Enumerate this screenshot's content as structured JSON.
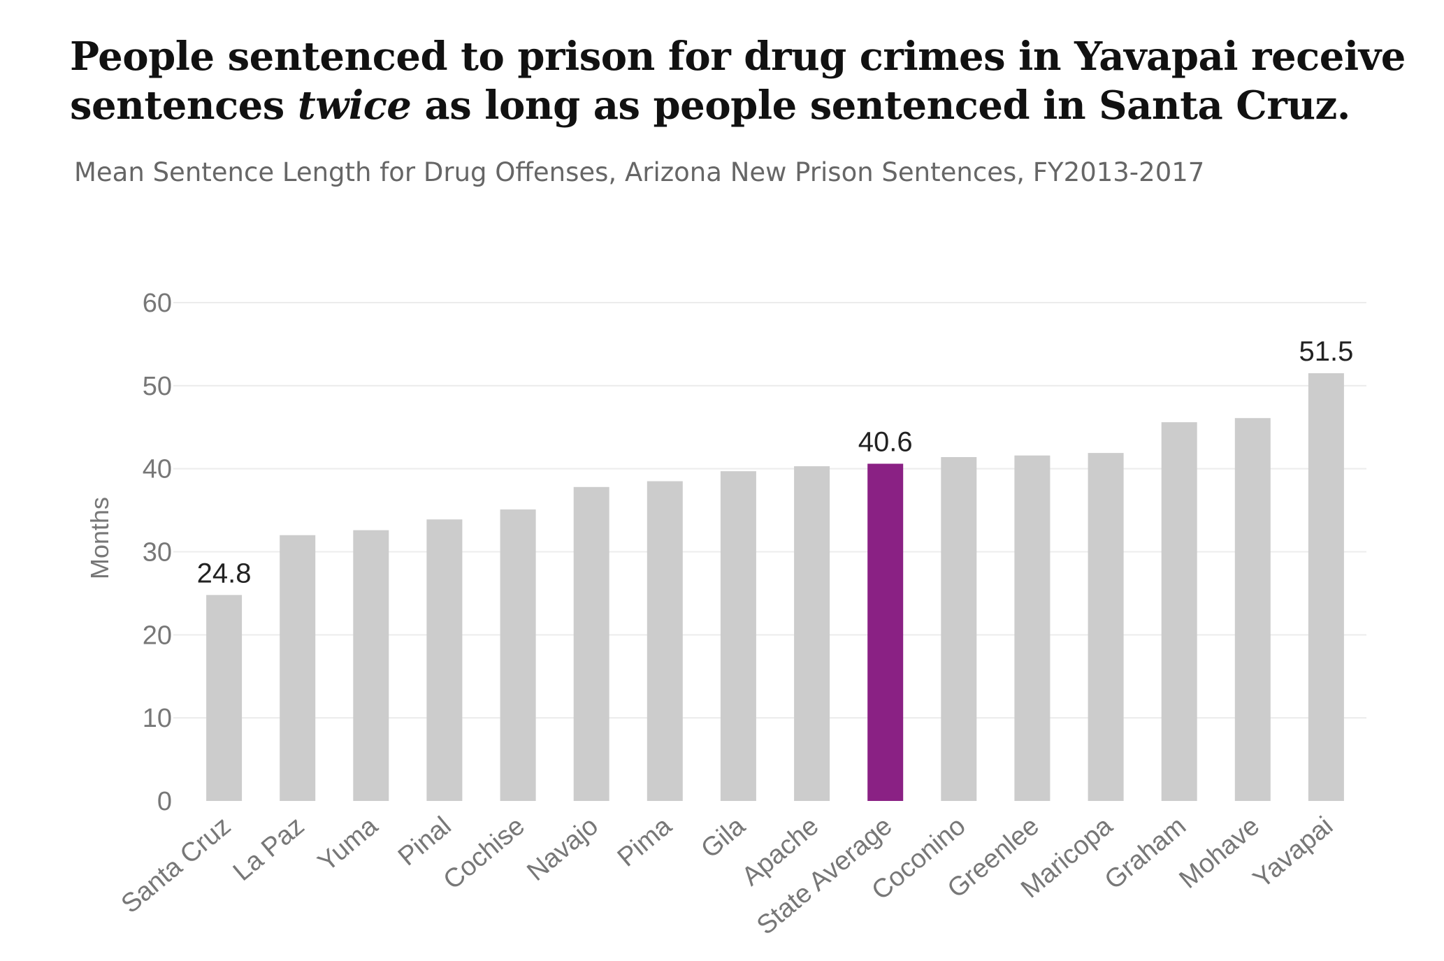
{
  "title": {
    "part1": "People sentenced to prison for drug crimes in Yavapai receive sentences ",
    "emphasis": "twice",
    "part2": " as long as people sentenced in Santa Cruz."
  },
  "subtitle": "Mean Sentence Length for Drug Offenses, Arizona New Prison Sentences, FY2013-2017",
  "colors": {
    "bar": "#cccccc",
    "highlight": "#8a2184",
    "grid": "#ececec",
    "tick_label": "#777777",
    "data_label": "#222222",
    "axis_title": "#777777"
  },
  "chart_data": {
    "type": "bar",
    "title": "People sentenced to prison for drug crimes in Yavapai receive sentences twice as long as people sentenced in Santa Cruz.",
    "subtitle": "Mean Sentence Length for Drug Offenses, Arizona New Prison Sentences, FY2013-2017",
    "xlabel": "",
    "ylabel": "Months",
    "ylim": [
      0,
      60
    ],
    "yticks": [
      0,
      10,
      20,
      30,
      40,
      50,
      60
    ],
    "grid": true,
    "categories": [
      "Santa Cruz",
      "La Paz",
      "Yuma",
      "Pinal",
      "Cochise",
      "Navajo",
      "Pima",
      "Gila",
      "Apache",
      "State Average",
      "Coconino",
      "Greenlee",
      "Maricopa",
      "Graham",
      "Mohave",
      "Yavapai"
    ],
    "values": [
      24.8,
      32.0,
      32.6,
      33.9,
      35.1,
      37.8,
      38.5,
      39.7,
      40.3,
      40.6,
      41.4,
      41.6,
      41.9,
      45.6,
      46.1,
      51.5
    ],
    "highlight_category": "State Average",
    "data_labels": [
      {
        "category": "Santa Cruz",
        "text": "24.8"
      },
      {
        "category": "State Average",
        "text": "40.6"
      },
      {
        "category": "Yavapai",
        "text": "51.5"
      }
    ]
  }
}
